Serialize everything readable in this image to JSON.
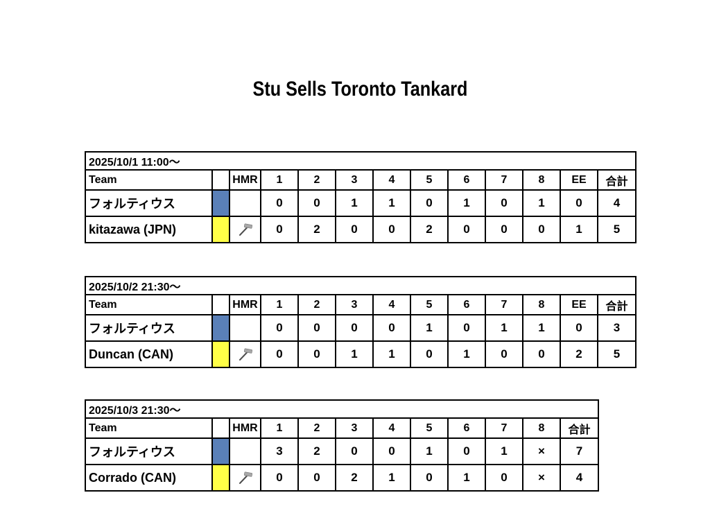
{
  "page": {
    "title": "Stu Sells Toronto Tankard"
  },
  "colors": {
    "team_blue": "#5A80B8",
    "team_yellow": "#FFFF47",
    "border": "#000000",
    "hammer_head": "#A8A8A8",
    "hammer_handle": "#4D4D4D"
  },
  "games": [
    {
      "datetime": "2025/10/1 11:00〜",
      "columns": [
        "Team",
        "",
        "HMR",
        "1",
        "2",
        "3",
        "4",
        "5",
        "6",
        "7",
        "8",
        "EE",
        "合計"
      ],
      "rows": [
        {
          "team": "フォルティウス",
          "swatch": "blue",
          "hammer": false,
          "ends": [
            "0",
            "0",
            "1",
            "1",
            "0",
            "1",
            "0",
            "1",
            "0"
          ],
          "total": "4"
        },
        {
          "team": "kitazawa (JPN)",
          "swatch": "yellow",
          "hammer": true,
          "ends": [
            "0",
            "2",
            "0",
            "0",
            "2",
            "0",
            "0",
            "0",
            "1"
          ],
          "total": "5"
        }
      ]
    },
    {
      "datetime": "2025/10/2 21:30〜",
      "columns": [
        "Team",
        "",
        "HMR",
        "1",
        "2",
        "3",
        "4",
        "5",
        "6",
        "7",
        "8",
        "EE",
        "合計"
      ],
      "rows": [
        {
          "team": "フォルティウス",
          "swatch": "blue",
          "hammer": false,
          "ends": [
            "0",
            "0",
            "0",
            "0",
            "1",
            "0",
            "1",
            "1",
            "0"
          ],
          "total": "3"
        },
        {
          "team": "Duncan (CAN)",
          "swatch": "yellow",
          "hammer": true,
          "ends": [
            "0",
            "0",
            "1",
            "1",
            "0",
            "1",
            "0",
            "0",
            "2"
          ],
          "total": "5"
        }
      ]
    },
    {
      "datetime": "2025/10/3 21:30〜",
      "columns": [
        "Team",
        "",
        "HMR",
        "1",
        "2",
        "3",
        "4",
        "5",
        "6",
        "7",
        "8",
        "合計"
      ],
      "rows": [
        {
          "team": "フォルティウス",
          "swatch": "blue",
          "hammer": false,
          "ends": [
            "3",
            "2",
            "0",
            "0",
            "1",
            "0",
            "1",
            "×"
          ],
          "total": "7"
        },
        {
          "team": "Corrado (CAN)",
          "swatch": "yellow",
          "hammer": true,
          "ends": [
            "0",
            "0",
            "2",
            "1",
            "0",
            "1",
            "0",
            "×"
          ],
          "total": "4"
        }
      ]
    }
  ]
}
